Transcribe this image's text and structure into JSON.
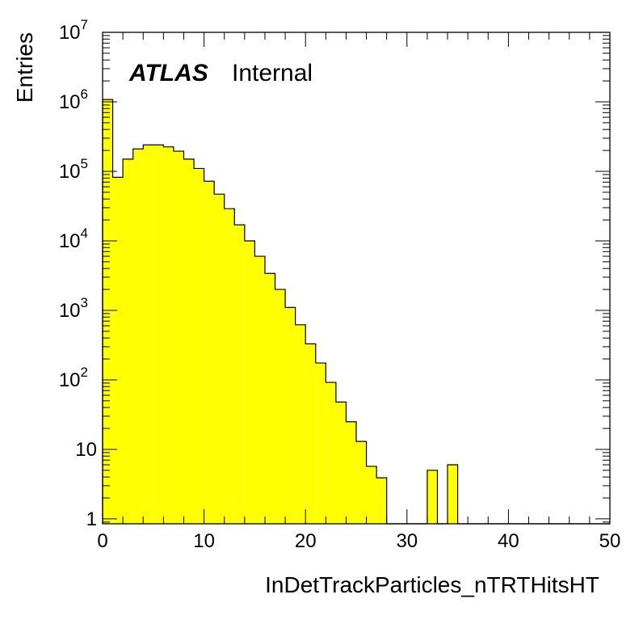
{
  "chart_data": {
    "type": "bar",
    "ylabel": "Entries",
    "xlabel": "InDetTrackParticles_nTRTHitsHT",
    "label_bold": "ATLAS",
    "label_plain": "Internal",
    "x": {
      "min": 0,
      "max": 50,
      "bin_width": 1,
      "ticks": [
        0,
        10,
        20,
        30,
        40,
        50
      ],
      "tick_labels": [
        "0",
        "10",
        "20",
        "30",
        "40",
        "50"
      ]
    },
    "y": {
      "scale": "log",
      "min": 0.85,
      "max": 10000000,
      "ticks": [
        1,
        10,
        100,
        1000,
        10000,
        100000,
        1000000,
        10000000
      ],
      "tick_labels": [
        {
          "base": "1",
          "exp": ""
        },
        {
          "base": "10",
          "exp": ""
        },
        {
          "base": "10",
          "exp": "2"
        },
        {
          "base": "10",
          "exp": "3"
        },
        {
          "base": "10",
          "exp": "4"
        },
        {
          "base": "10",
          "exp": "5"
        },
        {
          "base": "10",
          "exp": "6"
        },
        {
          "base": "10",
          "exp": "7"
        }
      ]
    },
    "values": [
      1080000,
      82000,
      150000,
      210000,
      240000,
      240000,
      225000,
      195000,
      150000,
      110000,
      72000,
      47000,
      29000,
      17000,
      10000,
      6000,
      3400,
      2000,
      1100,
      620,
      330,
      175,
      92,
      48,
      25,
      13,
      5.7,
      3.9,
      0,
      0,
      0,
      0,
      5,
      0,
      6,
      0,
      0,
      0,
      0,
      0,
      0,
      0,
      0,
      0,
      0,
      0,
      0,
      0,
      0,
      0
    ],
    "fill_color": "#ffff00",
    "line_color": "#000000"
  }
}
